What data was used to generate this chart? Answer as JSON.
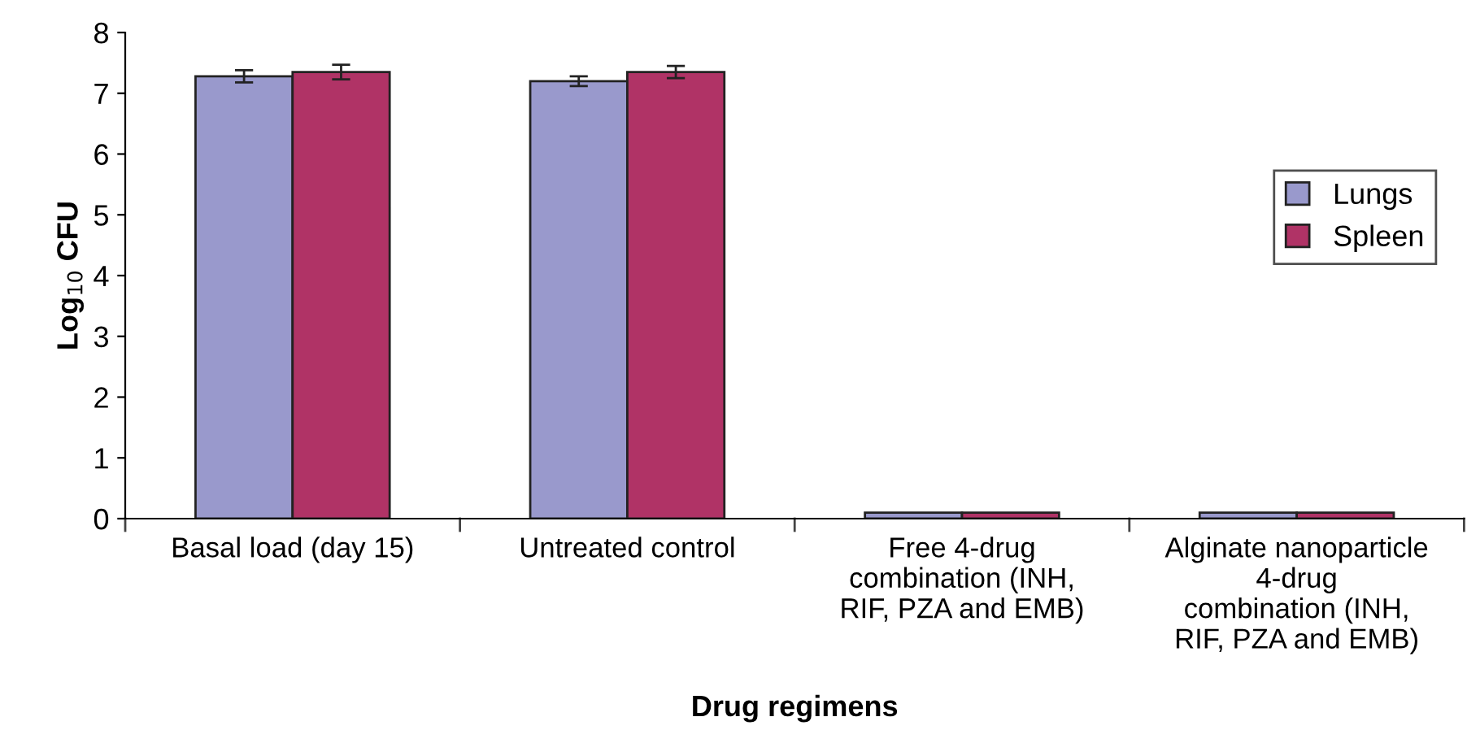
{
  "chart_data": {
    "type": "bar",
    "xlabel": "Drug regimens",
    "ylabel": "Log$_{10}$ CFU",
    "categories": [
      "Basal load (day 15)",
      "Untreated control",
      "Free 4-drug\ncombination (INH,\nRIF, PZA and EMB)",
      "Alginate nanoparticle\n4-drug\ncombination (INH,\nRIF, PZA and EMB)"
    ],
    "series": [
      {
        "name": "Lungs",
        "color": "#9999cc",
        "values": [
          7.28,
          7.2,
          0.1,
          0.1
        ],
        "errors": [
          0.1,
          0.08,
          null,
          null
        ]
      },
      {
        "name": "Spleen",
        "color": "#b03366",
        "values": [
          7.35,
          7.35,
          0.1,
          0.1
        ],
        "errors": [
          0.12,
          0.1,
          null,
          null
        ]
      }
    ],
    "ylim": [
      0,
      8
    ],
    "yticks": [
      0,
      1,
      2,
      3,
      4,
      5,
      6,
      7,
      8
    ],
    "grid": false,
    "legend": "right"
  }
}
